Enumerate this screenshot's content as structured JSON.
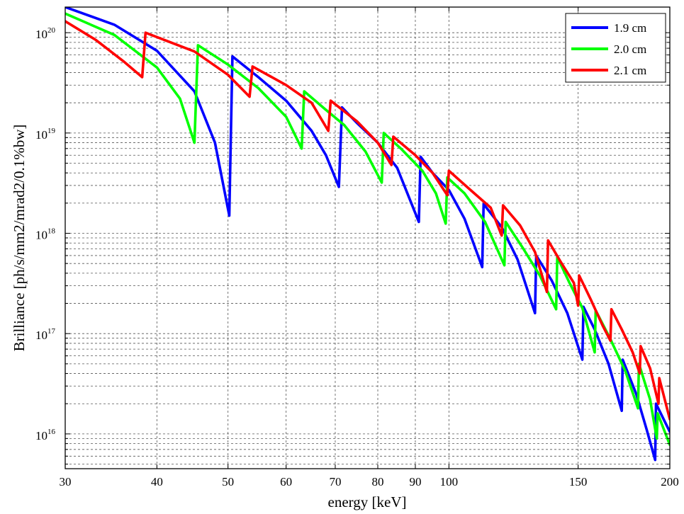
{
  "chart_data": {
    "type": "line",
    "title": "",
    "xlabel": "energy [keV]",
    "ylabel": "Brilliance [ph/s/mm2/mrad2/0.1%bw]",
    "xscale": "log",
    "yscale": "log",
    "xlim": [
      30,
      200
    ],
    "ylim": [
      4500000000000000.0,
      1.8e+20
    ],
    "grid": "dashed",
    "legend_position": "top-right",
    "xticks": [
      {
        "value": 30,
        "label": "30"
      },
      {
        "value": 40,
        "label": "40"
      },
      {
        "value": 50,
        "label": "50"
      },
      {
        "value": 60,
        "label": "60"
      },
      {
        "value": 70,
        "label": "70"
      },
      {
        "value": 80,
        "label": "80"
      },
      {
        "value": 90,
        "label": "90"
      },
      {
        "value": 100,
        "label": "100"
      },
      {
        "value": 150,
        "label": "150"
      },
      {
        "value": 200,
        "label": "200"
      }
    ],
    "yticks": [
      {
        "value": 1e+16,
        "base": "10",
        "exp": "16"
      },
      {
        "value": 1e+17,
        "base": "10",
        "exp": "17"
      },
      {
        "value": 1e+18,
        "base": "10",
        "exp": "18"
      },
      {
        "value": 1e+19,
        "base": "10",
        "exp": "19"
      },
      {
        "value": 1e+20,
        "base": "10",
        "exp": "20"
      }
    ],
    "series": [
      {
        "name": "1.9 cm",
        "color": "#0000ff",
        "points": [
          [
            30,
            1.8e+20
          ],
          [
            35,
            1.2e+20
          ],
          [
            40,
            6.6e+19
          ],
          [
            45,
            2.6e+19
          ],
          [
            48,
            8e+18
          ],
          [
            50.2,
            1.5e+18
          ],
          [
            50.7,
            5.8e+19
          ],
          [
            55,
            3.6e+19
          ],
          [
            60,
            2.1e+19
          ],
          [
            65,
            1.05e+19
          ],
          [
            68,
            6e+18
          ],
          [
            70.8,
            2.9e+18
          ],
          [
            71.5,
            1.8e+19
          ],
          [
            75,
            1.25e+19
          ],
          [
            80,
            8e+18
          ],
          [
            85,
            4.5e+18
          ],
          [
            91,
            1.3e+18
          ],
          [
            91.5,
            5.8e+18
          ],
          [
            95,
            4e+18
          ],
          [
            100,
            2.7e+18
          ],
          [
            105,
            1.4e+18
          ],
          [
            111,
            4.6e+17
          ],
          [
            111.5,
            1.95e+18
          ],
          [
            118,
            1.15e+18
          ],
          [
            124,
            5.5e+17
          ],
          [
            131,
            1.6e+17
          ],
          [
            131.5,
            6e+17
          ],
          [
            138,
            3.4e+17
          ],
          [
            145,
            1.6e+17
          ],
          [
            152,
            5.5e+16
          ],
          [
            152.5,
            1.85e+17
          ],
          [
            158,
            1.1e+17
          ],
          [
            165,
            5e+16
          ],
          [
            172,
            1.7e+16
          ],
          [
            172.5,
            5.5e+16
          ],
          [
            180,
            2.5e+16
          ],
          [
            186,
            1.1e+16
          ],
          [
            191,
            5500000000000000.0
          ],
          [
            191.5,
            2e+16
          ],
          [
            200,
            1.05e+16
          ]
        ]
      },
      {
        "name": "2.0 cm",
        "color": "#00ff00",
        "points": [
          [
            30,
            1.55e+20
          ],
          [
            35,
            9.5e+19
          ],
          [
            40,
            4.5e+19
          ],
          [
            43,
            2.2e+19
          ],
          [
            45,
            8e+18
          ],
          [
            45.5,
            7.5e+19
          ],
          [
            50,
            4.8e+19
          ],
          [
            55,
            2.8e+19
          ],
          [
            60,
            1.45e+19
          ],
          [
            63,
            7e+18
          ],
          [
            63.5,
            2.6e+19
          ],
          [
            68,
            1.7e+19
          ],
          [
            72,
            1.2e+19
          ],
          [
            77,
            6.5e+18
          ],
          [
            81,
            3.2e+18
          ],
          [
            81.5,
            1e+19
          ],
          [
            86,
            7e+18
          ],
          [
            92,
            4.2e+18
          ],
          [
            96,
            2.5e+18
          ],
          [
            99,
            1.25e+18
          ],
          [
            99.5,
            3.6e+18
          ],
          [
            105,
            2.5e+18
          ],
          [
            112,
            1.3e+18
          ],
          [
            119,
            4.8e+17
          ],
          [
            119.5,
            1.3e+18
          ],
          [
            126,
            7.2e+17
          ],
          [
            133,
            3.8e+17
          ],
          [
            140,
            1.75e+17
          ],
          [
            140.5,
            5.8e+17
          ],
          [
            146,
            3.2e+17
          ],
          [
            152,
            1.8e+17
          ],
          [
            158,
            6.5e+16
          ],
          [
            158.5,
            1.7e+17
          ],
          [
            166,
            8.8e+16
          ],
          [
            174,
            4.2e+16
          ],
          [
            181,
            1.8e+16
          ],
          [
            181.5,
            5e+16
          ],
          [
            188,
            2.2e+16
          ],
          [
            192,
            9000000000000000.0
          ],
          [
            192.5,
            1.6e+16
          ],
          [
            200,
            7800000000000000.0
          ]
        ]
      },
      {
        "name": "2.1 cm",
        "color": "#ff0000",
        "points": [
          [
            30,
            1.3e+20
          ],
          [
            33,
            8.5e+19
          ],
          [
            36,
            5.2e+19
          ],
          [
            38.2,
            3.6e+19
          ],
          [
            38.6,
            1e+20
          ],
          [
            45,
            6.5e+19
          ],
          [
            50,
            3.8e+19
          ],
          [
            53.5,
            2.3e+19
          ],
          [
            54,
            4.6e+19
          ],
          [
            60,
            3e+19
          ],
          [
            65,
            2e+19
          ],
          [
            68.5,
            1.05e+19
          ],
          [
            69,
            2.1e+19
          ],
          [
            75,
            1.3e+19
          ],
          [
            80,
            8e+18
          ],
          [
            83.5,
            4.8e+18
          ],
          [
            84,
            9.2e+18
          ],
          [
            90,
            6e+18
          ],
          [
            95,
            4e+18
          ],
          [
            99.5,
            2.4e+18
          ],
          [
            100,
            4.2e+18
          ],
          [
            107,
            2.7e+18
          ],
          [
            114,
            1.8e+18
          ],
          [
            118,
            9.5e+17
          ],
          [
            118.5,
            1.9e+18
          ],
          [
            125,
            1.2e+18
          ],
          [
            131,
            6.5e+17
          ],
          [
            136,
            2.6e+17
          ],
          [
            136.5,
            8.5e+17
          ],
          [
            142,
            5.2e+17
          ],
          [
            148,
            3.2e+17
          ],
          [
            150,
            1.9e+17
          ],
          [
            150.5,
            3.8e+17
          ],
          [
            156,
            2.2e+17
          ],
          [
            162,
            1.2e+17
          ],
          [
            166,
            8.5e+16
          ],
          [
            166.5,
            1.75e+17
          ],
          [
            172,
            1.1e+17
          ],
          [
            178,
            6.5e+16
          ],
          [
            182,
            4e+16
          ],
          [
            182.5,
            7.5e+16
          ],
          [
            188,
            4.5e+16
          ],
          [
            193,
            2e+16
          ],
          [
            193.5,
            3.6e+16
          ],
          [
            200,
            1.4e+16
          ]
        ]
      }
    ]
  }
}
